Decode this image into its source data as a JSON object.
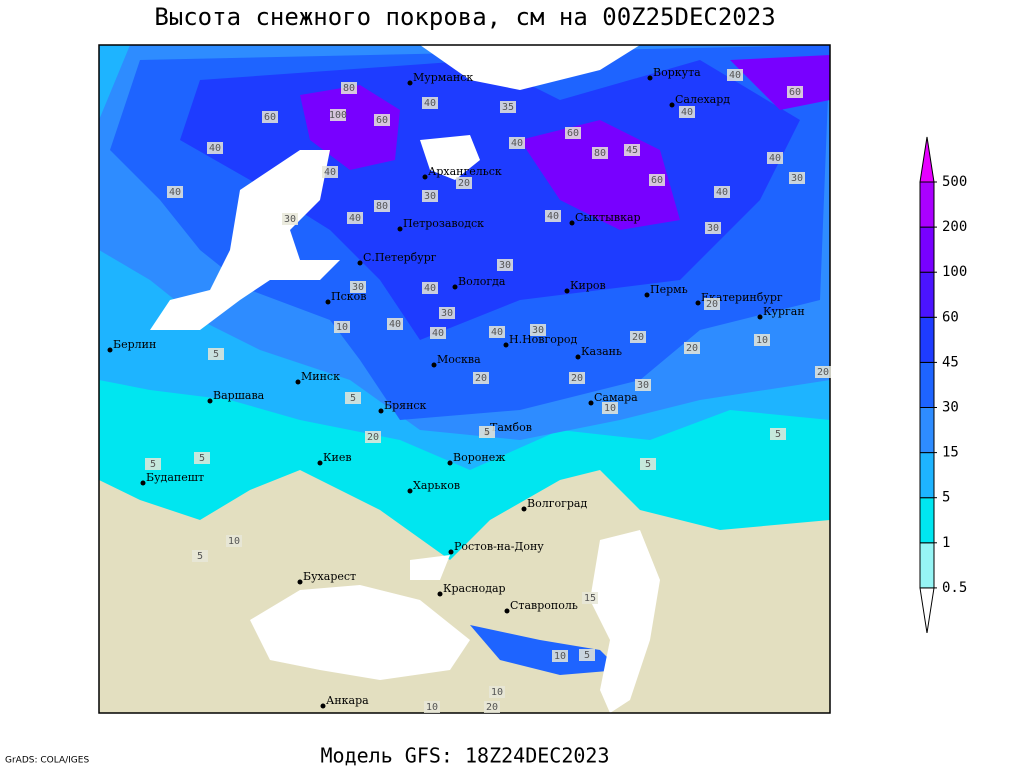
{
  "header": {
    "title": "Высота снежного покрова, см на 00Z25DEC2023"
  },
  "footer": {
    "model": "Модель GFS: 18Z24DEC2023",
    "credit": "GrADS: COLA/IGES"
  },
  "cities": [
    "Мурманск",
    "Воркута",
    "Салехард",
    "Архангельск",
    "Сыктывкар",
    "Петрозаводск",
    "С.Петербург",
    "Вологда",
    "Киров",
    "Пермь",
    "Екатеринбург",
    "Курган",
    "Псков",
    "Берлин",
    "Н.Новгород",
    "Москва",
    "Казань",
    "Минск",
    "Варшава",
    "Самара",
    "Брянск",
    "Тамбов",
    "Киев",
    "Воронеж",
    "Будапешт",
    "Харьков",
    "Волгоград",
    "Ростов-на-Дону",
    "Бухарест",
    "Краснодар",
    "Ставрополь",
    "Анкара"
  ],
  "contour_labels": [
    40,
    80,
    100,
    60,
    60,
    40,
    40,
    40,
    30,
    40,
    80,
    30,
    20,
    40,
    35,
    40,
    40,
    60,
    60,
    80,
    45,
    60,
    40,
    30,
    40,
    30,
    40,
    30,
    40,
    30,
    20,
    30,
    10,
    40,
    40,
    40,
    30,
    20,
    20,
    10,
    20,
    20,
    20,
    30,
    10,
    5,
    5,
    20,
    5,
    5,
    5,
    5,
    5,
    10,
    5,
    15,
    10,
    5,
    10,
    20,
    10
  ],
  "colorbar": {
    "levels": [
      0.5,
      1,
      5,
      15,
      30,
      45,
      60,
      100,
      200,
      500
    ],
    "colors": [
      "#ffffff",
      "#96f5f5",
      "#00e6f0",
      "#1eb4ff",
      "#2e8cff",
      "#1e64ff",
      "#1e3cff",
      "#4b14ff",
      "#7800ff",
      "#aa00ff",
      "#e600ff"
    ]
  }
}
